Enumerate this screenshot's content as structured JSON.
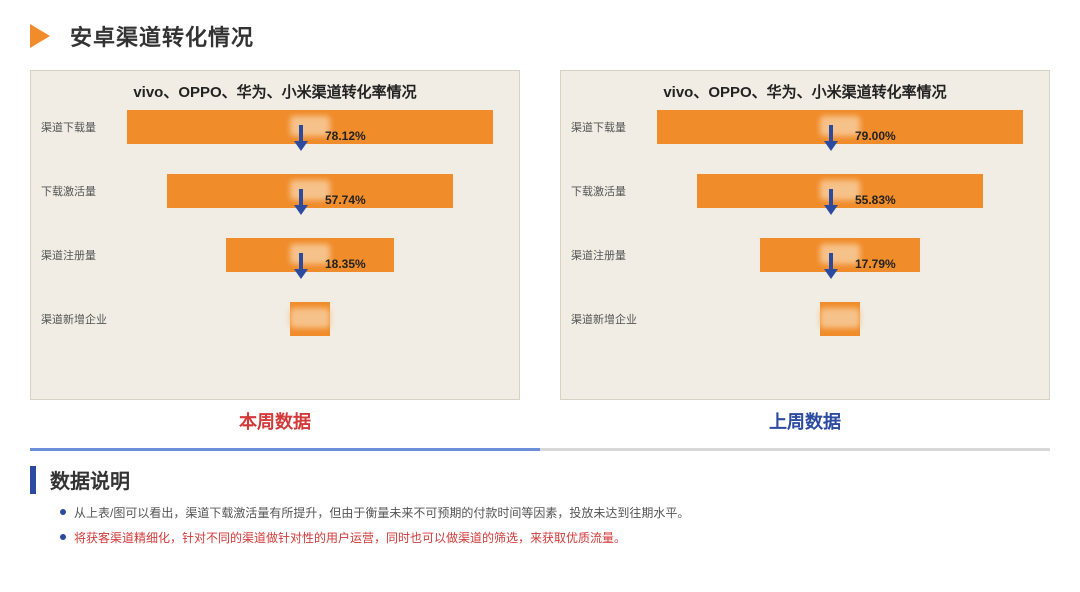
{
  "header": {
    "title": "安卓渠道转化情况"
  },
  "charts": {
    "left": {
      "title": "vivo、OPPO、华为、小米渠道转化率情况",
      "caption": "本周数据",
      "caption_color": "#d23a3a",
      "stages": [
        {
          "label": "渠道下载量",
          "width_pct": 92
        },
        {
          "label": "下载激活量",
          "width_pct": 72
        },
        {
          "label": "渠道注册量",
          "width_pct": 42
        },
        {
          "label": "渠道新增企业",
          "width_pct": 10
        }
      ],
      "rates": [
        "78.12%",
        "57.74%",
        "18.35%"
      ]
    },
    "right": {
      "title": "vivo、OPPO、华为、小米渠道转化率情况",
      "caption": "上周数据",
      "caption_color": "#2b4aa0",
      "stages": [
        {
          "label": "渠道下载量",
          "width_pct": 92
        },
        {
          "label": "下载激活量",
          "width_pct": 72
        },
        {
          "label": "渠道注册量",
          "width_pct": 40
        },
        {
          "label": "渠道新增企业",
          "width_pct": 10
        }
      ],
      "rates": [
        "79.00%",
        "55.83%",
        "17.79%"
      ]
    },
    "styling": {
      "bar_color": "#f08c2a",
      "arrow_color": "#2b4aa0",
      "chart_bg": "#f1ede4",
      "blur_color": "#f6c28b"
    }
  },
  "notes": {
    "title": "数据说明",
    "items": [
      {
        "text": "从上表/图可以看出，渠道下载激活量有所提升，但由于衡量未来不可预期的付款时间等因素，投放未达到往期水平。",
        "highlight": false
      },
      {
        "text": "将获客渠道精细化，针对不同的渠道做针对性的用户运营，同时也可以做渠道的筛选，来获取优质流量。",
        "highlight": true
      }
    ]
  }
}
